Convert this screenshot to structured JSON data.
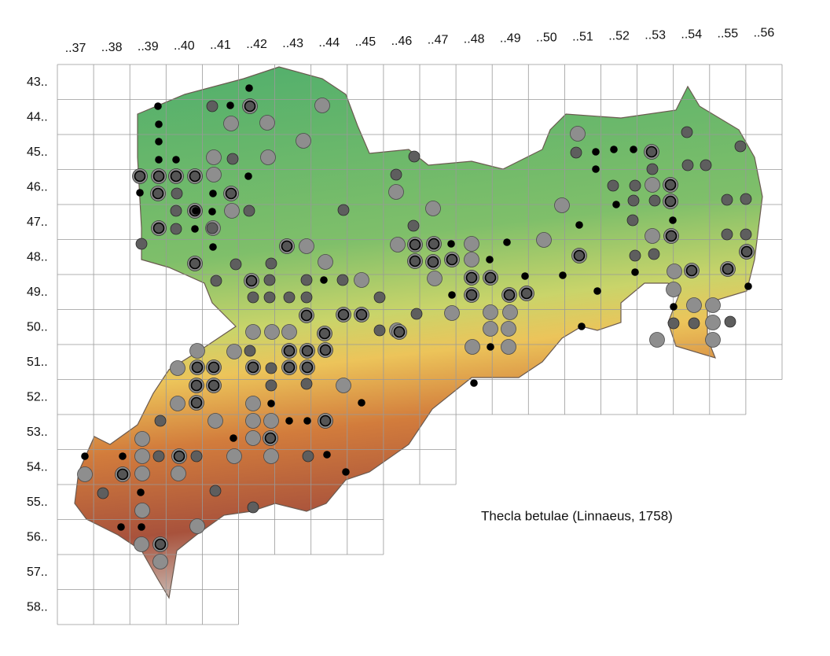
{
  "column_labels": [
    "..37",
    "..38",
    "..39",
    "..40",
    "..41",
    "..42",
    "..43",
    "..44",
    "..45",
    "..46",
    "..47",
    "..48",
    "..49",
    "..50",
    "..51",
    "..52",
    "..53",
    "..54",
    "..55",
    "..56"
  ],
  "row_labels": [
    "43..",
    "44..",
    "45..",
    "46..",
    "47..",
    "48..",
    "49..",
    "50..",
    "51..",
    "52..",
    "53..",
    "54..",
    "55..",
    "56..",
    "57..",
    "58.."
  ],
  "species": "Thecla betulae (Linnaeus, 1758)"
}
